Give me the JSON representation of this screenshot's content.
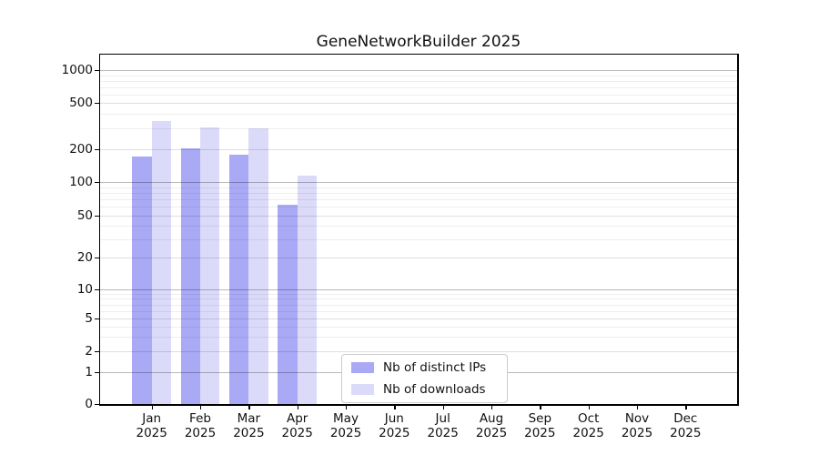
{
  "chart_data": {
    "type": "bar",
    "title": "GeneNetworkBuilder 2025",
    "categories": [
      "Jan 2025",
      "Feb 2025",
      "Mar 2025",
      "Apr 2025",
      "May 2025",
      "Jun 2025",
      "Jul 2025",
      "Aug 2025",
      "Sep 2025",
      "Oct 2025",
      "Nov 2025",
      "Dec 2025"
    ],
    "series": [
      {
        "name": "Nb of distinct IPs",
        "color": "#a9a9f6",
        "values": [
          170,
          205,
          180,
          63,
          0,
          0,
          0,
          0,
          0,
          0,
          0,
          0
        ]
      },
      {
        "name": "Nb of downloads",
        "color": "#dbdbf9",
        "values": [
          350,
          310,
          300,
          114,
          0,
          0,
          0,
          0,
          0,
          0,
          0,
          0
        ]
      }
    ],
    "yscale": "symlog",
    "yticks": [
      0,
      1,
      2,
      5,
      10,
      20,
      50,
      100,
      200,
      500,
      1000
    ],
    "ylim": [
      0,
      1400
    ],
    "xlabel": "",
    "ylabel": "",
    "grid": true,
    "legend": {
      "position": "lower center",
      "entries": [
        "Nb of distinct IPs",
        "Nb of downloads"
      ]
    }
  }
}
